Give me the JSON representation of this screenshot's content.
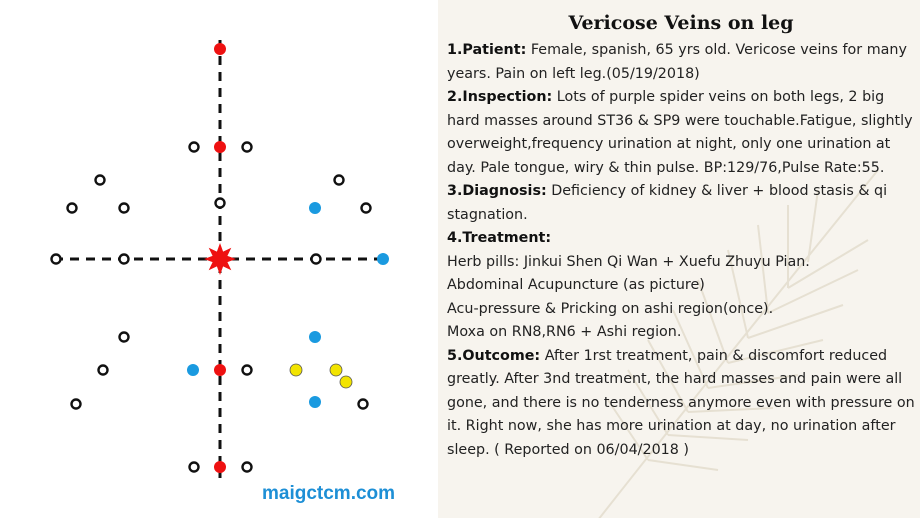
{
  "title": "Vericose Veins on leg",
  "website": "maigctcm.com",
  "colors": {
    "red_point": "#ee1111",
    "blue_point": "#1a9ae0",
    "yellow_point": "#f2e400",
    "black_ring": "#111111",
    "url_text": "#1d8fd6"
  },
  "sections": [
    {
      "heading": "1.Patient:",
      "lines": [
        "Female, spanish, 65 yrs old. Vericose veins for many years. Pain on left leg.(05/19/2018)"
      ]
    },
    {
      "heading": "2.Inspection:",
      "lines": [
        "Lots of purple spider veins on both legs, 2 big hard masses around ST36 & SP9 were touchable.Fatigue, slightly overweight,frequency urination at night, only one urination at day. Pale tongue, wiry & thin pulse. BP:129/76,Pulse Rate:55."
      ]
    },
    {
      "heading": "3.Diagnosis:",
      "lines": [
        "Deficiency of kidney & liver + blood stasis & qi stagnation."
      ]
    },
    {
      "heading": "4.Treatment:",
      "lines": [
        "Herb pills: Jinkui Shen Qi Wan + Xuefu Zhuyu Pian.",
        "Abdominal Acupuncture (as picture)",
        "Acu-pressure & Pricking on ashi region(once).",
        "Moxa on RN8,RN6 + Ashi region."
      ]
    },
    {
      "heading": "5.Outcome:",
      "lines": [
        "After 1rst treatment, pain & discomfort reduced greatly. After 3nd treatment, the hard masses and pain were all gone, and there is no tenderness anymore even with pressure on it. Right now, she has more urination at day, no urination after sleep. ( Reported on 06/04/2018 )"
      ]
    }
  ]
}
